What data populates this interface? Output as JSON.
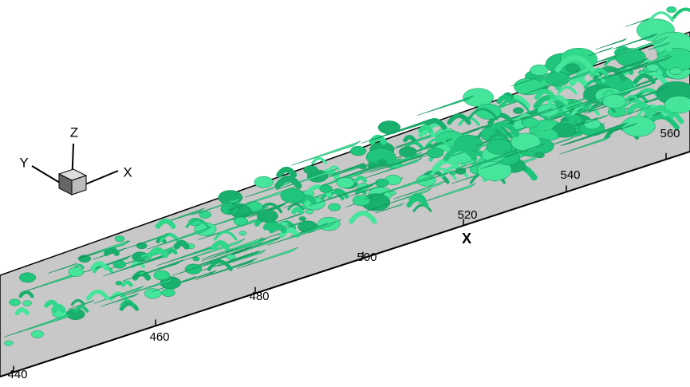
{
  "axis": {
    "label": "X",
    "ticks": [
      "440",
      "460",
      "480",
      "500",
      "520",
      "540",
      "560"
    ]
  },
  "triad": {
    "x": "X",
    "y": "Y",
    "z": "Z"
  }
}
